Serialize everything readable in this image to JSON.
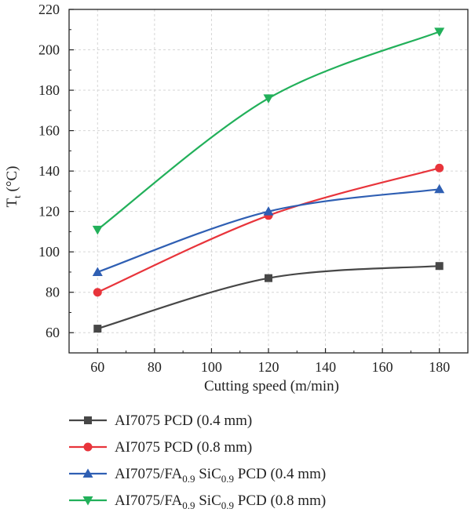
{
  "chart_data": {
    "type": "line",
    "x": [
      60,
      120,
      180
    ],
    "xlabel": "Cutting speed (m/min)",
    "ylabel_main": "T",
    "ylabel_sub": "t",
    "ylabel_unit": " (°C)",
    "xlim": [
      50,
      190
    ],
    "ylim": [
      50,
      220
    ],
    "xticks": [
      60,
      80,
      100,
      120,
      140,
      160,
      180
    ],
    "yticks": [
      60,
      80,
      100,
      120,
      140,
      160,
      180,
      200,
      220
    ],
    "grid": "dashed",
    "legend_position": "bottom",
    "series": [
      {
        "name": "AI7075 PCD (0.4 mm)",
        "label_parts": [
          {
            "t": "AI7075 PCD (0.4 mm)"
          }
        ],
        "values": [
          62,
          87,
          93
        ],
        "color": "#474747",
        "marker": "square"
      },
      {
        "name": "AI7075 PCD (0.8 mm)",
        "label_parts": [
          {
            "t": "AI7075 PCD (0.8 mm)"
          }
        ],
        "values": [
          80,
          118,
          141.5
        ],
        "color": "#e8343b",
        "marker": "circle"
      },
      {
        "name": "AI7075/FA0.9 SiC0.9 PCD (0.4 mm)",
        "label_parts": [
          {
            "t": "AI7075/FA"
          },
          {
            "t": "0.9",
            "sub": true
          },
          {
            "t": " SiC"
          },
          {
            "t": "0.9",
            "sub": true
          },
          {
            "t": " PCD (0.4 mm)"
          }
        ],
        "values": [
          90,
          120,
          131
        ],
        "color": "#2f5fb3",
        "marker": "triangle-up"
      },
      {
        "name": "AI7075/FA0.9 SiC0.9 PCD (0.8 mm)",
        "label_parts": [
          {
            "t": "AI7075/FA"
          },
          {
            "t": "0.9",
            "sub": true
          },
          {
            "t": " SiC"
          },
          {
            "t": "0.9",
            "sub": true
          },
          {
            "t": " PCD (0.8 mm)"
          }
        ],
        "values": [
          111,
          176,
          209
        ],
        "color": "#22b05a",
        "marker": "triangle-down"
      }
    ]
  }
}
